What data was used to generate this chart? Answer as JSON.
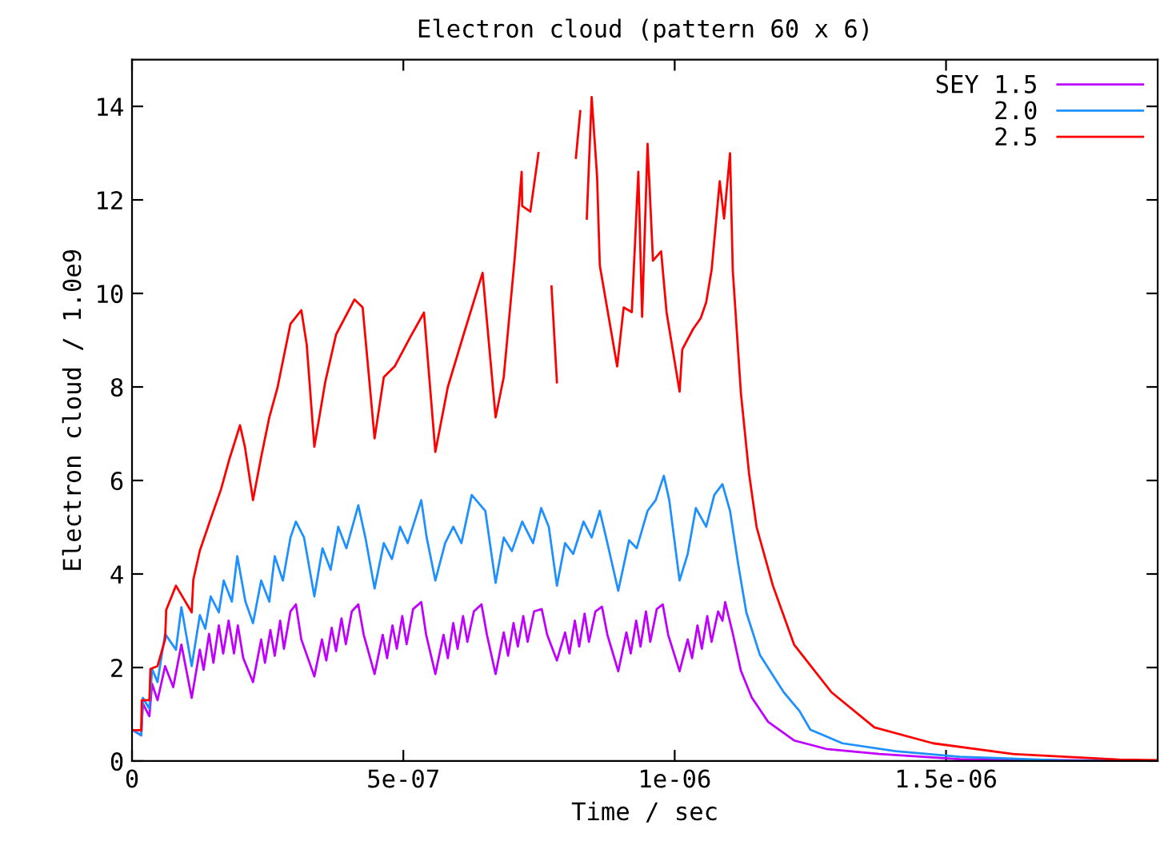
{
  "chart_data": {
    "type": "line",
    "title": "Electron cloud (pattern 60 x 6)",
    "xlabel": "Time / sec",
    "ylabel": "Electron cloud / 1.0e9",
    "xlim": [
      0,
      1.89e-06
    ],
    "ylim": [
      0,
      15
    ],
    "xticks": [
      0,
      {
        "value": 5e-07,
        "label": "5e-07"
      },
      {
        "value": 1e-06,
        "label": "1e-06"
      },
      {
        "value": 1.5e-06,
        "label": "1.5e-06"
      }
    ],
    "yticks": [
      0,
      2,
      4,
      6,
      8,
      10,
      12,
      14
    ],
    "grid": false,
    "legend": "top right",
    "marker": "none",
    "line_style": "solid",
    "series": [
      {
        "name": "SEY 1.5",
        "color": "#bf00ff",
        "x": [
          2e-09,
          1.7e-08,
          2e-08,
          3.2e-08,
          3.7e-08,
          4.7e-08,
          6.1e-08,
          7.6e-08,
          9.1e-08,
          1.1e-07,
          1.25e-07,
          1.32e-07,
          1.42e-07,
          1.5e-07,
          1.6e-07,
          1.68e-07,
          1.78e-07,
          1.88e-07,
          1.95e-07,
          2.05e-07,
          2.23e-07,
          2.38e-07,
          2.45e-07,
          2.55e-07,
          2.63e-07,
          2.73e-07,
          2.8e-07,
          2.92e-07,
          3.02e-07,
          3.12e-07,
          3.36e-07,
          3.5e-07,
          3.58e-07,
          3.68e-07,
          3.76e-07,
          3.86e-07,
          3.94e-07,
          4.05e-07,
          4.17e-07,
          4.27e-07,
          4.47e-07,
          4.62e-07,
          4.7e-07,
          4.8e-07,
          4.88e-07,
          4.98e-07,
          5.06e-07,
          5.18e-07,
          5.33e-07,
          5.42e-07,
          5.59e-07,
          5.74e-07,
          5.82e-07,
          5.92e-07,
          6e-07,
          6.1e-07,
          6.18e-07,
          6.3e-07,
          6.44e-07,
          6.54e-07,
          6.7e-07,
          6.85e-07,
          6.93e-07,
          7.03e-07,
          7.11e-07,
          7.21e-07,
          7.29e-07,
          7.41e-07,
          7.55e-07,
          7.65e-07,
          7.83e-07,
          7.98e-07,
          8.06e-07,
          8.16e-07,
          8.24e-07,
          8.34e-07,
          8.42e-07,
          8.54e-07,
          8.66e-07,
          8.76e-07,
          8.96e-07,
          9.11e-07,
          9.19e-07,
          9.29e-07,
          9.37e-07,
          9.47e-07,
          9.55e-07,
          9.67e-07,
          9.78e-07,
          9.88e-07,
          1.009e-06,
          1.024e-06,
          1.032e-06,
          1.042e-06,
          1.05e-06,
          1.06e-06,
          1.068e-06,
          1.08e-06,
          1.088e-06,
          1.093e-06,
          1.107e-06,
          1.122e-06,
          1.142e-06,
          1.172e-06,
          1.22e-06,
          1.279e-06,
          1.377e-06,
          1.525e-06,
          1.89e-06
        ],
        "values": [
          0.66,
          0.55,
          1.23,
          0.96,
          1.65,
          1.3,
          2.03,
          1.58,
          2.49,
          1.35,
          2.38,
          1.95,
          2.72,
          2.1,
          2.9,
          2.3,
          3.0,
          2.3,
          2.9,
          2.2,
          1.69,
          2.6,
          2.1,
          2.8,
          2.25,
          3.0,
          2.4,
          3.2,
          3.35,
          2.6,
          1.81,
          2.6,
          2.15,
          2.85,
          2.35,
          3.05,
          2.5,
          3.2,
          3.35,
          2.7,
          1.86,
          2.7,
          2.2,
          2.9,
          2.4,
          3.1,
          2.5,
          3.25,
          3.4,
          2.7,
          1.86,
          2.7,
          2.2,
          2.95,
          2.4,
          3.1,
          2.55,
          3.2,
          3.35,
          2.7,
          1.86,
          2.75,
          2.25,
          2.95,
          2.45,
          3.1,
          2.55,
          3.2,
          3.25,
          2.7,
          2.15,
          2.75,
          2.3,
          3.0,
          2.45,
          3.15,
          2.55,
          3.2,
          3.3,
          2.7,
          1.92,
          2.75,
          2.3,
          3.0,
          2.45,
          3.2,
          2.55,
          3.25,
          3.35,
          2.7,
          1.92,
          2.6,
          2.2,
          2.9,
          2.4,
          3.1,
          2.55,
          3.2,
          3.0,
          3.4,
          2.73,
          1.93,
          1.36,
          0.84,
          0.44,
          0.26,
          0.15,
          0.04,
          0.0
        ]
      },
      {
        "name": "2.0",
        "color": "#1e90ff",
        "x": [
          2e-09,
          1.7e-08,
          2e-08,
          3.2e-08,
          3.7e-08,
          4.7e-08,
          6.1e-08,
          8.1e-08,
          9.1e-08,
          1.1e-07,
          1.25e-07,
          1.35e-07,
          1.45e-07,
          1.6e-07,
          1.69e-07,
          1.84e-07,
          1.94e-07,
          2.09e-07,
          2.23e-07,
          2.38e-07,
          2.53e-07,
          2.63e-07,
          2.78e-07,
          2.92e-07,
          3.02e-07,
          3.17e-07,
          3.36e-07,
          3.51e-07,
          3.66e-07,
          3.8e-07,
          3.95e-07,
          4.17e-07,
          4.3e-07,
          4.47e-07,
          4.64e-07,
          4.79e-07,
          4.94e-07,
          5.08e-07,
          5.33e-07,
          5.43e-07,
          5.59e-07,
          5.77e-07,
          5.92e-07,
          6.07e-07,
          6.26e-07,
          6.51e-07,
          6.7e-07,
          6.85e-07,
          7e-07,
          7.19e-07,
          7.39e-07,
          7.54e-07,
          7.68e-07,
          7.83e-07,
          7.98e-07,
          8.13e-07,
          8.32e-07,
          8.47e-07,
          8.62e-07,
          8.76e-07,
          8.96e-07,
          9.16e-07,
          9.3e-07,
          9.5e-07,
          9.65e-07,
          9.8e-07,
          9.9e-07,
          1.009e-06,
          1.024e-06,
          1.039e-06,
          1.058e-06,
          1.073e-06,
          1.088e-06,
          1.102e-06,
          1.117e-06,
          1.132e-06,
          1.157e-06,
          1.201e-06,
          1.23e-06,
          1.25e-06,
          1.309e-06,
          1.407e-06,
          1.525e-06,
          1.721e-06,
          1.89e-06
        ],
        "values": [
          0.66,
          0.55,
          1.35,
          1.12,
          1.97,
          1.69,
          2.72,
          2.38,
          3.29,
          2.03,
          3.12,
          2.83,
          3.52,
          3.18,
          3.86,
          3.41,
          4.38,
          3.41,
          2.95,
          3.86,
          3.41,
          4.38,
          3.86,
          4.78,
          5.12,
          4.78,
          3.52,
          4.55,
          4.09,
          5.01,
          4.55,
          5.47,
          4.78,
          3.69,
          4.66,
          4.32,
          5.01,
          4.66,
          5.58,
          4.78,
          3.86,
          4.66,
          5.01,
          4.66,
          5.69,
          5.35,
          3.81,
          4.78,
          4.49,
          5.12,
          4.66,
          5.41,
          5.01,
          3.75,
          4.66,
          4.43,
          5.12,
          4.78,
          5.35,
          4.66,
          3.64,
          4.72,
          4.55,
          5.35,
          5.58,
          6.1,
          5.58,
          3.86,
          4.43,
          5.41,
          5.01,
          5.69,
          5.92,
          5.35,
          4.21,
          3.18,
          2.27,
          1.47,
          1.07,
          0.67,
          0.38,
          0.21,
          0.09,
          0.01,
          0.0
        ]
      },
      {
        "name": "2.5",
        "color": "#ff0000",
        "x": [
          2e-09,
          1.7e-08,
          1.8e-08,
          3.2e-08,
          3.4e-08,
          4.7e-08,
          6.1e-08,
          6.3e-08,
          8.1e-08,
          1.1e-07,
          1.13e-07,
          1.25e-07,
          1.45e-07,
          1.64e-07,
          1.79e-07,
          1.99e-07,
          2.08e-07,
          2.23e-07,
          2.38e-07,
          2.53e-07,
          2.68e-07,
          2.78e-07,
          2.92e-07,
          3.12e-07,
          3.22e-07,
          3.36e-07,
          3.56e-07,
          3.76e-07,
          4.1e-07,
          4.25e-07,
          4.47e-07,
          4.64e-07,
          4.84e-07,
          5.13e-07,
          5.38e-07,
          5.59e-07,
          5.82e-07,
          6.11e-07,
          6.46e-07,
          6.7e-07,
          6.85e-07,
          7.05e-07,
          7.18e-07,
          7.19e-07,
          7.34e-07,
          7.49e-07,
          7.59e-07,
          7.73e-07,
          7.83e-07,
          8.13e-07,
          8.18e-07,
          8.26e-07,
          8.34e-07,
          8.38e-07,
          8.47e-07,
          8.57e-07,
          8.62e-07,
          8.94e-07,
          9.06e-07,
          9.21e-07,
          9.33e-07,
          9.4e-07,
          9.5e-07,
          9.6e-07,
          9.75e-07,
          9.85e-07,
          1.009e-06,
          1.014e-06,
          1.034e-06,
          1.048e-06,
          1.058e-06,
          1.068e-06,
          1.083e-06,
          1.091e-06,
          1.102e-06,
          1.107e-06,
          1.122e-06,
          1.137e-06,
          1.151e-06,
          1.181e-06,
          1.22e-06,
          1.289e-06,
          1.368e-06,
          1.476e-06,
          1.623e-06,
          1.819e-06,
          1.89e-06
        ],
        "values": [
          0.66,
          0.66,
          1.3,
          1.3,
          1.97,
          2.03,
          2.6,
          3.23,
          3.75,
          3.18,
          3.88,
          4.5,
          5.18,
          5.81,
          6.44,
          7.18,
          6.72,
          5.58,
          6.5,
          7.35,
          7.98,
          8.55,
          9.35,
          9.64,
          8.9,
          6.72,
          8.1,
          9.12,
          9.87,
          9.7,
          6.9,
          8.21,
          8.44,
          9.07,
          9.59,
          6.61,
          8.0,
          9.12,
          10.44,
          7.35,
          8.21,
          10.73,
          12.6,
          11.87,
          11.75,
          13.0,
          null,
          10.15,
          8.1,
          null,
          12.9,
          13.9,
          null,
          11.6,
          14.2,
          12.5,
          10.6,
          8.44,
          9.7,
          9.6,
          12.6,
          9.5,
          13.2,
          10.7,
          10.9,
          9.6,
          7.9,
          8.8,
          9.24,
          9.47,
          9.81,
          10.5,
          12.4,
          11.6,
          13.0,
          10.5,
          7.87,
          6.15,
          5.0,
          3.75,
          2.49,
          1.47,
          0.72,
          0.38,
          0.15,
          0.03,
          0.02
        ]
      }
    ]
  }
}
